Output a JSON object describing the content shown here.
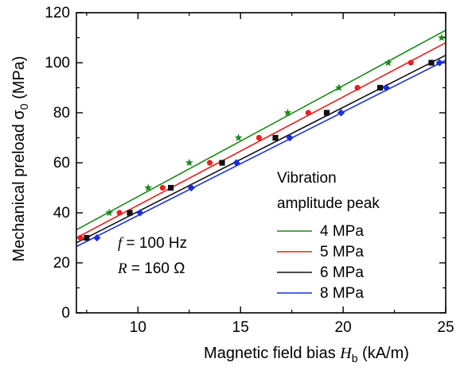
{
  "chart_data": {
    "type": "scatter",
    "xlabel_prefix": "Magnetic field bias ",
    "xlabel_symbol": "H",
    "xlabel_sub": "b",
    "xlabel_suffix": " (kA/m)",
    "ylabel_prefix": "Mechanical preload ",
    "ylabel_symbol": "σ",
    "ylabel_sub": "0",
    "ylabel_suffix": " (MPa)",
    "xlim": [
      7,
      25
    ],
    "ylim": [
      0,
      120
    ],
    "xticks": [
      10,
      15,
      20,
      25
    ],
    "yticks": [
      0,
      20,
      40,
      60,
      80,
      100,
      120
    ],
    "legend_title_line1": "Vibration",
    "legend_title_line2": "amplitude peak",
    "legend_position": "right",
    "annotation_f_symbol": "f",
    "annotation_f_value": " = 100 Hz",
    "annotation_r_symbol": "R",
    "annotation_r_value": " = 160 Ω",
    "series": [
      {
        "name": "4 MPa",
        "color": "#1a8a1a",
        "marker": "star",
        "points": [
          [
            8.6,
            40
          ],
          [
            10.5,
            50
          ],
          [
            12.5,
            60
          ],
          [
            14.9,
            70
          ],
          [
            17.3,
            80
          ],
          [
            19.8,
            90
          ],
          [
            22.2,
            100
          ],
          [
            24.8,
            110
          ]
        ],
        "fit": [
          [
            7,
            33.2
          ],
          [
            25,
            113.0
          ]
        ]
      },
      {
        "name": "5 MPa",
        "color": "#e82020",
        "marker": "circle",
        "points": [
          [
            7.2,
            30
          ],
          [
            9.1,
            40
          ],
          [
            11.2,
            50
          ],
          [
            13.5,
            60
          ],
          [
            15.9,
            70
          ],
          [
            18.3,
            80
          ],
          [
            20.7,
            90
          ],
          [
            23.3,
            100
          ]
        ],
        "fit": [
          [
            7,
            30.0
          ],
          [
            25,
            108.0
          ]
        ]
      },
      {
        "name": "6 MPa",
        "color": "#111111",
        "marker": "square",
        "points": [
          [
            7.5,
            30
          ],
          [
            9.6,
            40
          ],
          [
            11.6,
            50
          ],
          [
            14.1,
            60
          ],
          [
            16.7,
            70
          ],
          [
            19.2,
            80
          ],
          [
            21.8,
            90
          ],
          [
            24.3,
            100
          ]
        ],
        "fit": [
          [
            7,
            28.0
          ],
          [
            25,
            103.0
          ]
        ]
      },
      {
        "name": "8 MPa",
        "color": "#1a2ee0",
        "marker": "diamond",
        "points": [
          [
            8.0,
            30
          ],
          [
            10.1,
            40
          ],
          [
            12.6,
            50
          ],
          [
            14.8,
            60
          ],
          [
            17.4,
            70
          ],
          [
            19.9,
            80
          ],
          [
            22.1,
            90
          ],
          [
            24.7,
            100
          ]
        ],
        "fit": [
          [
            7,
            26.5
          ],
          [
            25,
            101.0
          ]
        ]
      }
    ]
  }
}
